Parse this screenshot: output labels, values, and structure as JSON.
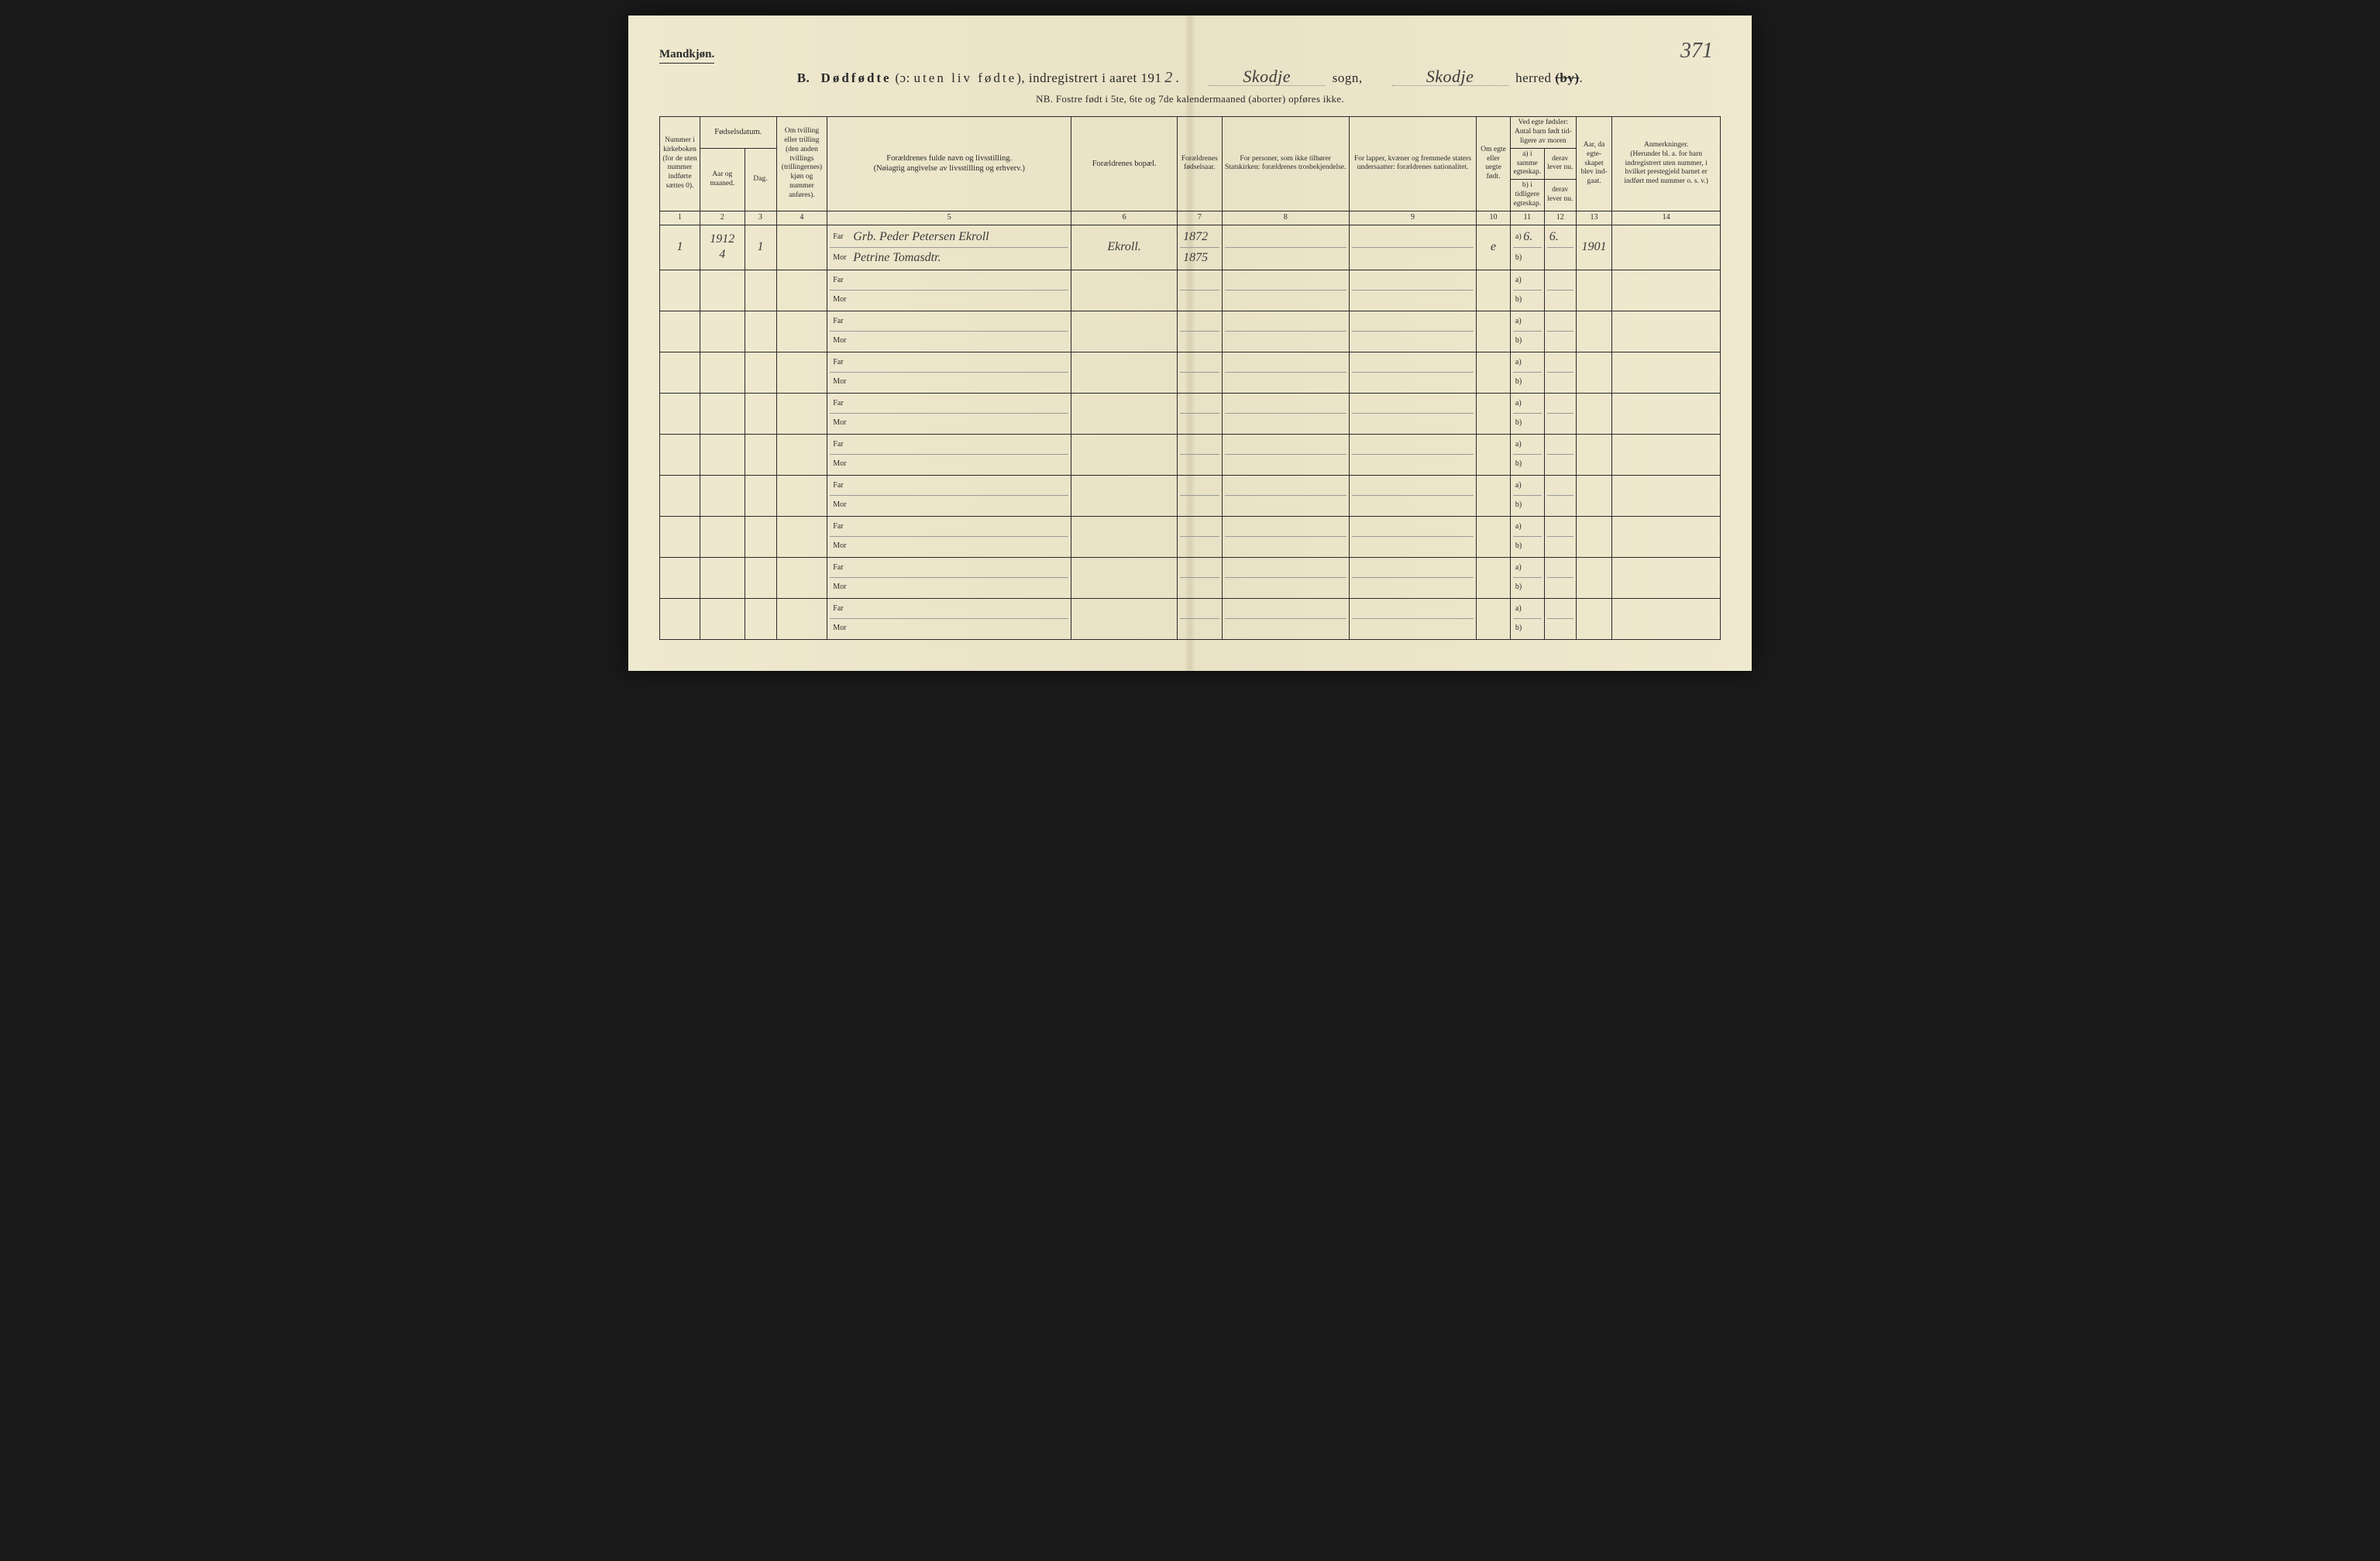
{
  "header": {
    "mandkjon": "Mandkjøn.",
    "page_number_handwritten": "371",
    "title_prefix": "B.",
    "title_main_bold": "Dødfødte",
    "title_main_paren": "(ɔ: uten liv fødte),",
    "title_main_reg": "indregistrert i aaret 191",
    "year_handwritten": "2",
    "sogn_label": "sogn,",
    "sogn_value": "Skodje",
    "herred_label": "herred",
    "herred_struck": "(by)",
    "herred_value": "Skodje",
    "period": ".",
    "nb": "NB.  Fostre født i 5te, 6te og 7de kalendermaaned (aborter) opføres ikke."
  },
  "columns": {
    "c1": "Nummer i kirke­boken (for de uten nummer indførte sættes 0).",
    "c2_top": "Fødselsdatum.",
    "c2a": "Aar og maaned.",
    "c2b": "Dag.",
    "c3": "Om tvilling eller trilling (den anden tvillings (trillingernes) kjøn og nummer anføres).",
    "c4": "Forældrenes fulde navn og livsstilling.\n(Nøiagtig angivelse av livsstilling og erhverv.)",
    "c5": "Forældrenes bopæl.",
    "c6": "For­ældrenes fødsels­aar.",
    "c7": "For personer, som ikke tilhører Statskirken: forældrenes trosbekjendelse.",
    "c8": "For lapper, kvæner og fremmede staters undersaatter: forældrenes nationalitet.",
    "c9": "Om egte eller uegte født.",
    "c10_top": "Ved egte fødsler: Antal barn født tid­ligere av moren",
    "c10a": "a) i samme egteskap.",
    "c10b": "b) i tidligere egteskap.",
    "c11a": "derav lever nu.",
    "c11b": "derav lever nu.",
    "c12": "Aar, da egte­skapet blev ind­gaat.",
    "c13_top": "Anmerkninger.",
    "c13_sub": "(Herunder bl. a. for barn indregistrert uten nummer, i hvilket prestegjeld barnet er indført med nummer o. s. v.)",
    "nums": [
      "1",
      "2",
      "3",
      "4",
      "5",
      "6",
      "7",
      "8",
      "9",
      "10",
      "11",
      "12",
      "13",
      "14"
    ]
  },
  "labels": {
    "far": "Far",
    "mor": "Mor",
    "a": "a)",
    "b": "b)"
  },
  "rows": [
    {
      "num": "1",
      "aar_maaned": "1912\n4",
      "dag": "1",
      "tvilling": "",
      "far": "Grb. Peder Petersen Ekroll",
      "mor": "Petrine Tomasdtr.",
      "bopel": "Ekroll.",
      "far_aar": "1872",
      "mor_aar": "1875",
      "tros": "",
      "nat": "",
      "egte": "e",
      "a_samme": "6.",
      "a_lever": "6.",
      "aar_egte": "1901",
      "anm": ""
    },
    {},
    {},
    {},
    {},
    {},
    {},
    {},
    {},
    {}
  ],
  "style": {
    "page_bg": "#efe9cf",
    "ink": "#2a2a2a",
    "handwriting_color": "#3a3a3a",
    "col_widths_pct": [
      3.8,
      4.2,
      3.0,
      4.8,
      23.0,
      10.0,
      4.2,
      12.0,
      12.0,
      3.2,
      3.2,
      3.0,
      3.4,
      10.2
    ]
  }
}
